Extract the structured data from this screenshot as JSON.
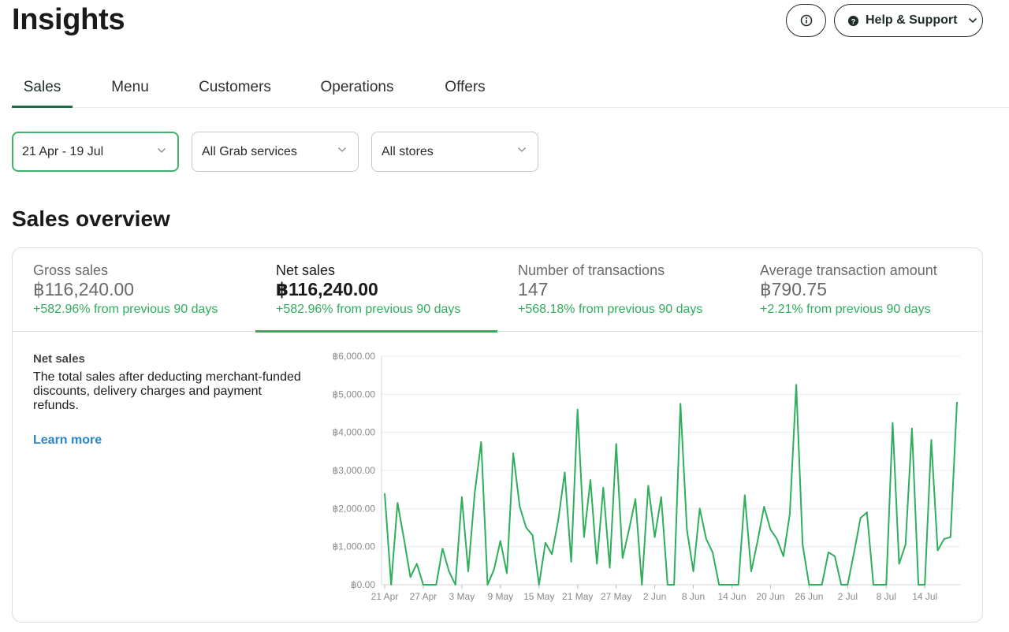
{
  "header": {
    "title": "Insights",
    "info_icon": "info-circle-icon",
    "help_label": "Help & Support",
    "help_icon": "question-circle-icon"
  },
  "tabs": [
    {
      "label": "Sales",
      "active": true
    },
    {
      "label": "Menu",
      "active": false
    },
    {
      "label": "Customers",
      "active": false
    },
    {
      "label": "Operations",
      "active": false
    },
    {
      "label": "Offers",
      "active": false
    }
  ],
  "filters": {
    "date": "21 Apr - 19 Jul",
    "services": "All Grab services",
    "stores": "All stores"
  },
  "overview": {
    "title": "Sales overview",
    "metrics": [
      {
        "label": "Gross sales",
        "value": "฿116,240.00",
        "delta": "+582.96% from previous 90 days",
        "active": false
      },
      {
        "label": "Net sales",
        "value": "฿116,240.00",
        "delta": "+582.96% from previous 90 days",
        "active": true
      },
      {
        "label": "Number of transactions",
        "value": "147",
        "delta": "+568.18% from previous 90 days",
        "active": false
      },
      {
        "label": "Average transaction amount",
        "value": "฿790.75",
        "delta": "+2.21% from previous 90 days",
        "active": false
      }
    ],
    "description": {
      "title": "Net sales",
      "text": "The total sales after deducting merchant-funded discounts, delivery charges and payment refunds.",
      "link": "Learn more"
    }
  },
  "colors": {
    "accent_green": "#2fae5c",
    "tab_underline": "#1e6b47",
    "link_blue": "#2a86d1"
  },
  "chart_data": {
    "type": "line",
    "title": "",
    "xlabel": "",
    "ylabel": "",
    "ylim": [
      0,
      6000
    ],
    "yticks": [
      0,
      1000,
      2000,
      3000,
      4000,
      5000,
      6000
    ],
    "ytick_labels": [
      "฿0.00",
      "฿1,000.00",
      "฿2,000.00",
      "฿3,000.00",
      "฿4,000.00",
      "฿5,000.00",
      "฿6,000.00"
    ],
    "xtick_labels": [
      "21 Apr",
      "27 Apr",
      "3 May",
      "9 May",
      "15 May",
      "21 May",
      "27 May",
      "2 Jun",
      "8 Jun",
      "14 Jun",
      "20 Jun",
      "26 Jun",
      "2 Jul",
      "8 Jul",
      "14 Jul"
    ],
    "xtick_every": 6,
    "grid": true,
    "series": [
      {
        "color": "#2fae5c",
        "values": [
          2400,
          0,
          2150,
          1200,
          200,
          550,
          0,
          0,
          0,
          950,
          350,
          0,
          2300,
          350,
          2400,
          3750,
          0,
          400,
          1150,
          300,
          3450,
          2050,
          1500,
          1300,
          0,
          1100,
          800,
          1700,
          2950,
          600,
          4600,
          1250,
          2750,
          550,
          2550,
          450,
          3700,
          700,
          1450,
          2250,
          0,
          2600,
          1250,
          2300,
          0,
          0,
          4750,
          1450,
          350,
          2000,
          1200,
          850,
          0,
          0,
          0,
          0,
          2350,
          350,
          1150,
          2050,
          1450,
          1200,
          750,
          1850,
          5250,
          1050,
          0,
          0,
          0,
          850,
          750,
          0,
          0,
          850,
          1750,
          1900,
          0,
          0,
          0,
          4250,
          550,
          1050,
          4100,
          0,
          0,
          3800,
          900,
          1200,
          1250,
          4800
        ]
      }
    ]
  }
}
